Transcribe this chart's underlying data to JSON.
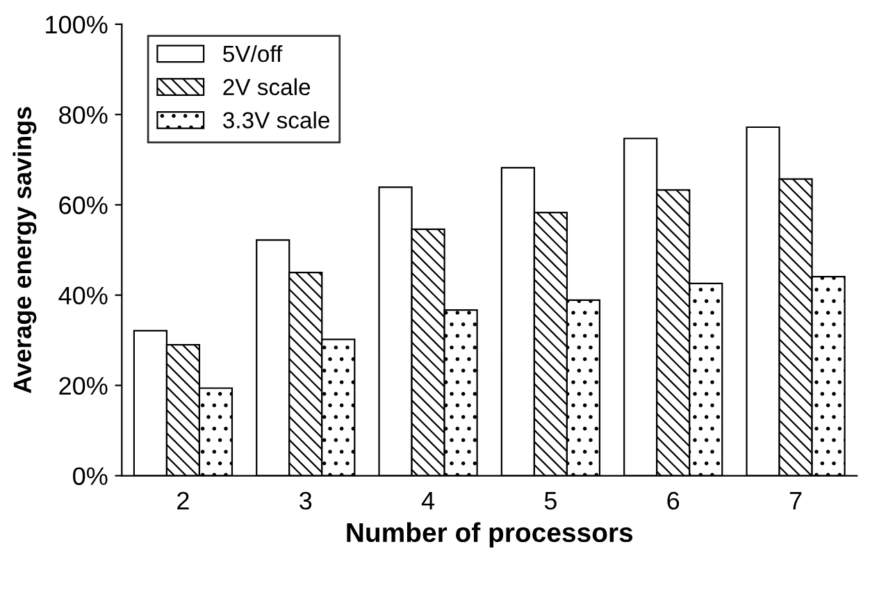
{
  "chart_data": {
    "type": "bar",
    "xlabel": "Number of processors",
    "ylabel": "Average energy savings",
    "categories": [
      "2",
      "3",
      "4",
      "5",
      "6",
      "7"
    ],
    "series": [
      {
        "name": "5V/off",
        "color": "#ffffff",
        "values": [
          32.1,
          52.2,
          63.9,
          68.2,
          74.7,
          77.2
        ]
      },
      {
        "name": "2V scale",
        "color": "#000000",
        "values": [
          29,
          45,
          54.6,
          58.3,
          63.3,
          65.7
        ]
      },
      {
        "name": "3.3V scale",
        "color": "#000000",
        "values": [
          19.4,
          30.2,
          36.7,
          38.9,
          42.6,
          44.1
        ]
      }
    ],
    "ylim": [
      0,
      100
    ],
    "yticks": [
      {
        "value": 0,
        "label": "0%"
      },
      {
        "value": 20,
        "label": "20%"
      },
      {
        "value": 40,
        "label": "40%"
      },
      {
        "value": 60,
        "label": "60%"
      },
      {
        "value": 80,
        "label": "80%"
      },
      {
        "value": 100,
        "label": "100%"
      }
    ],
    "grid": false,
    "legend": "top left"
  }
}
